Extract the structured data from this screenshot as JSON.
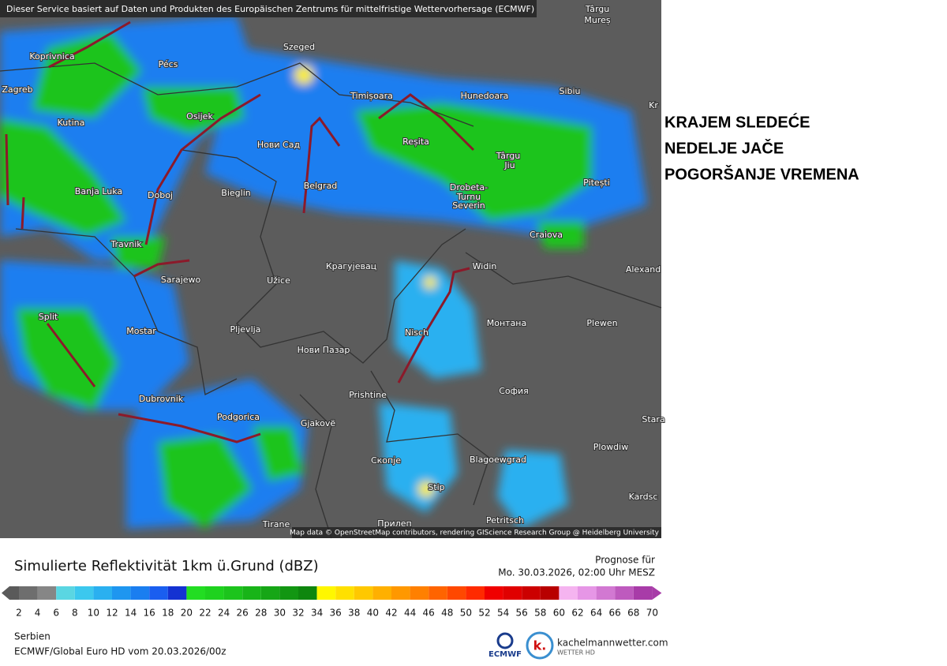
{
  "header": {
    "notice": "Dieser Service basiert auf Daten und Produkten des Europäischen Zentrums für mittelfristige Wettervorhersage (ECMWF)",
    "attribution": "Map data © OpenStreetMap contributors, rendering GIScience Research Group @ Heidelberg University"
  },
  "headline": [
    "KRAJEM SLEDEĆE",
    "NEDELJE JAČE",
    "POGORŠANJE VREMENA"
  ],
  "map": {
    "cities": [
      "Târgu",
      "Mureș",
      "Koprivnica",
      "Pécs",
      "Szeged",
      "Zagreb",
      "Timișoara",
      "Hunedoara",
      "Sibiu",
      "Kr",
      "Kutina",
      "Osijek",
      "Нови Сад",
      "Reșita",
      "Târgu",
      "Jiu",
      "Banja Luka",
      "Doboj",
      "Bieglin",
      "Belgrad",
      "Drobeta-",
      "Turnu",
      "Severin",
      "Pitești",
      "Craiova",
      "Travnik",
      "Sarajewo",
      "Užice",
      "Крагујевац",
      "Widin",
      "Alexand",
      "Split",
      "Mostar",
      "Pljevlja",
      "Монтана",
      "Plewen",
      "Nisch",
      "Нови Пазар",
      "София",
      "Prishtine",
      "Dubrovnik",
      "Podgorica",
      "Gjakovë",
      "Stara",
      "Plowdiw",
      "Скопје",
      "Blagoewgrad",
      "Stip",
      "Kardsc",
      "Petritsch",
      "Tirane",
      "Прилеп"
    ]
  },
  "legend": {
    "title": "Simulierte Reflektivität 1km ü.Grund (dBZ)",
    "forecast_label": "Prognose für",
    "forecast_time": "Mo. 30.03.2026, 02:00 Uhr MESZ",
    "ticks": [
      2,
      4,
      6,
      8,
      10,
      12,
      14,
      16,
      18,
      20,
      22,
      24,
      26,
      28,
      30,
      32,
      34,
      36,
      38,
      40,
      42,
      44,
      46,
      48,
      50,
      52,
      54,
      56,
      58,
      60,
      62,
      64,
      66,
      68,
      70
    ],
    "colors": [
      "#5a5a5a",
      "#6e6e6e",
      "#868686",
      "#5ad6e2",
      "#3cc8ee",
      "#2ab0f0",
      "#1e96f0",
      "#1a7ef0",
      "#1a5ef0",
      "#1432d2",
      "#22dd22",
      "#1ed21e",
      "#1cc41c",
      "#18b418",
      "#16a616",
      "#129612",
      "#0e860e",
      "#fff700",
      "#ffe000",
      "#ffc800",
      "#ffb000",
      "#ff9800",
      "#ff8000",
      "#ff6400",
      "#ff4800",
      "#ff2a00",
      "#f00000",
      "#e00000",
      "#cc0000",
      "#b80000",
      "#f5b4f0",
      "#e696e6",
      "#d278d2",
      "#be5abe",
      "#a83ca8"
    ]
  },
  "footer": {
    "region": "Serbien",
    "model": "ECMWF/Global Euro HD vom  20.03.2026/00z",
    "ecmwf_logo": "ECMWF",
    "brand": "kachelmannwetter.com",
    "brand_sub": "WETTER HD"
  }
}
